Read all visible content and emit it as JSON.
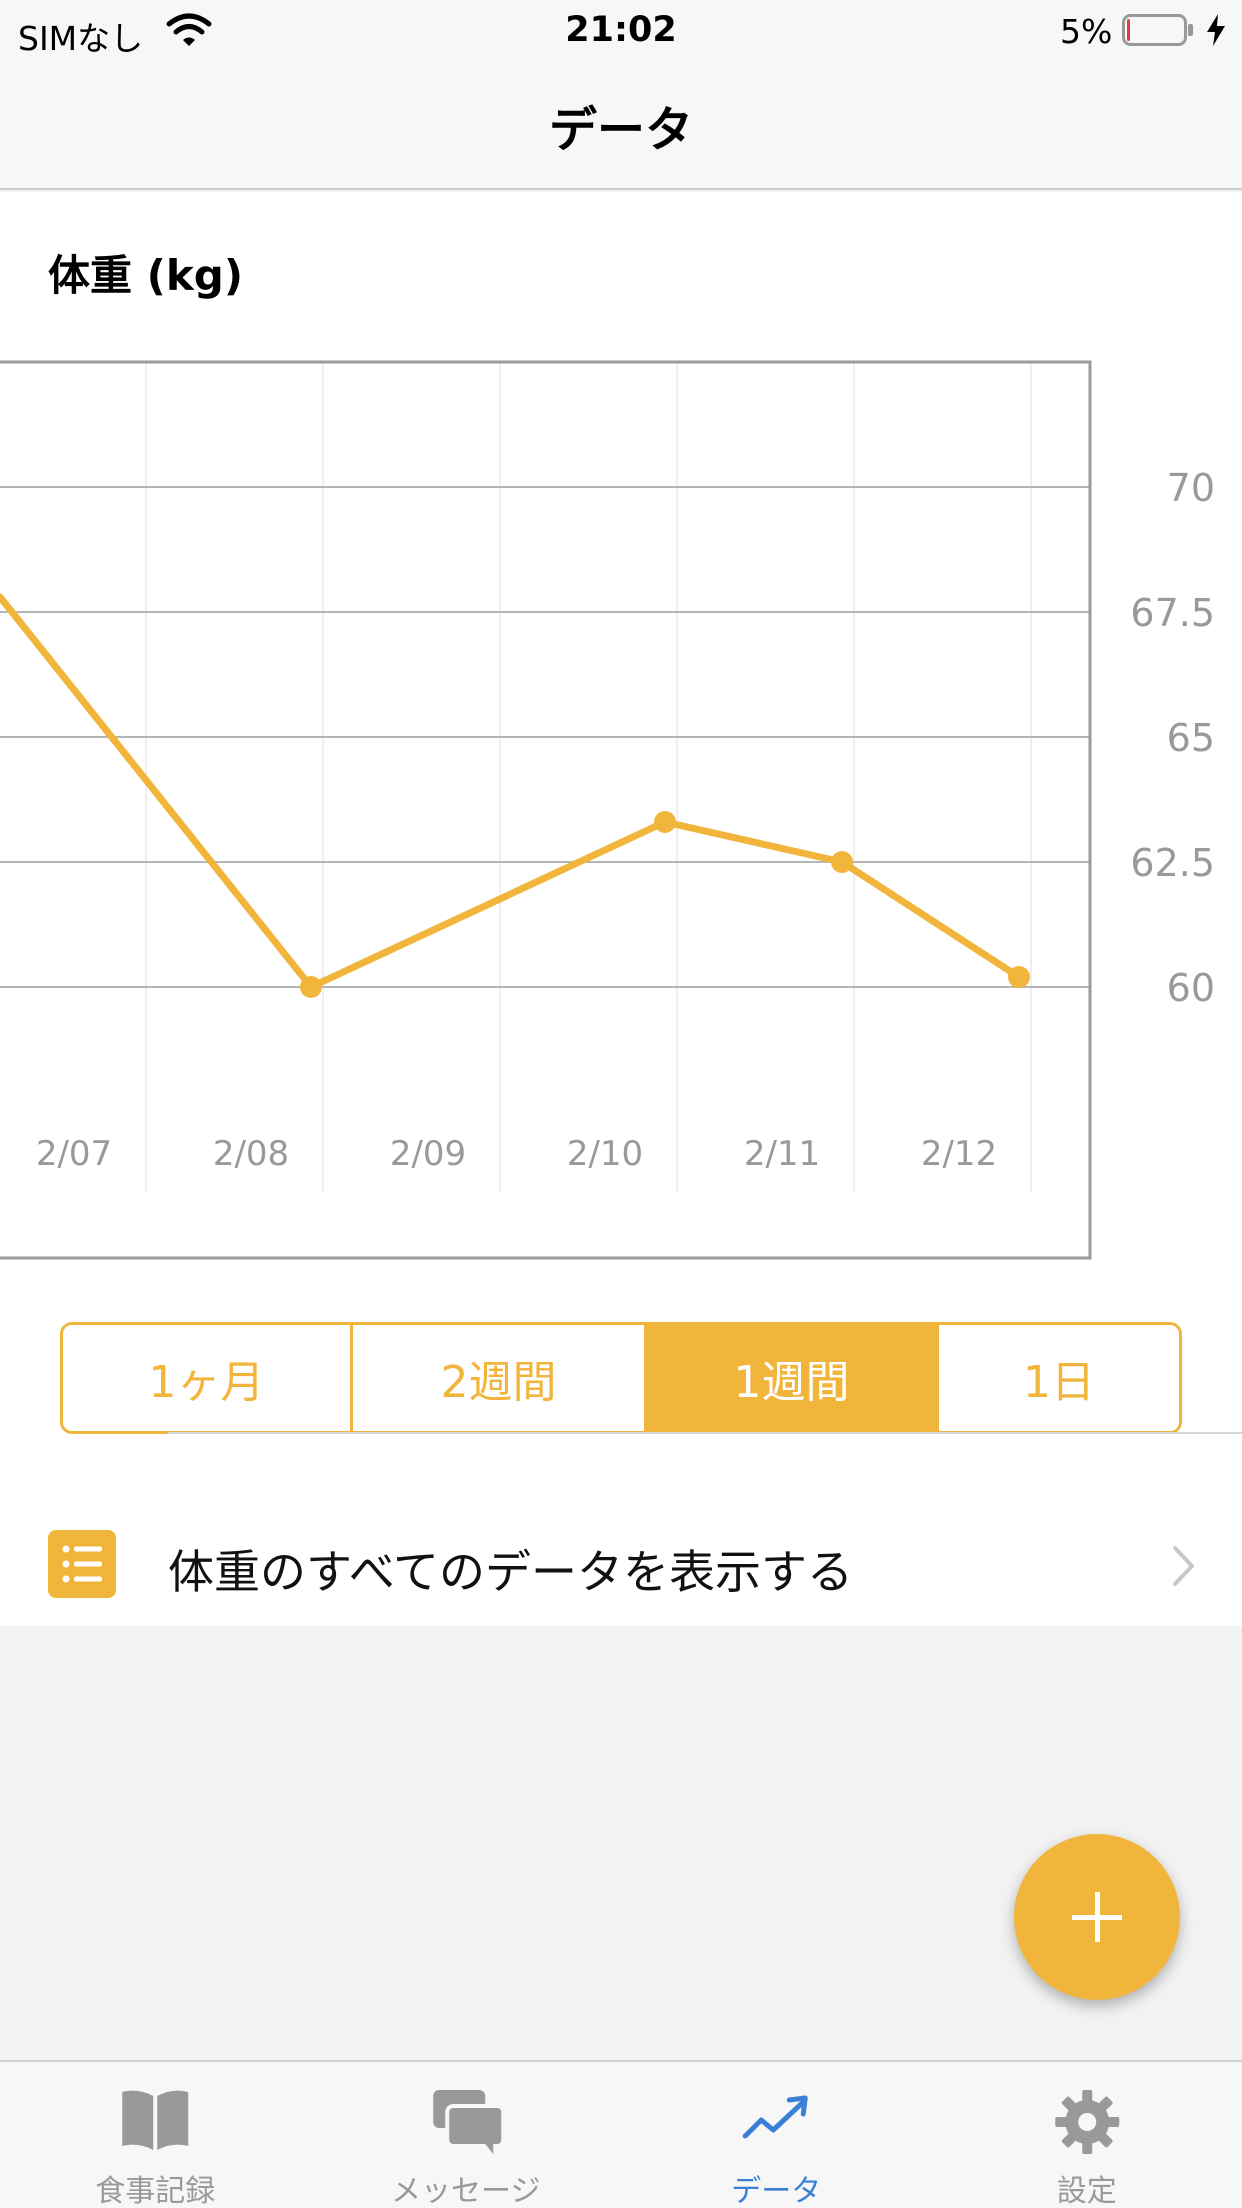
{
  "status_bar": {
    "carrier": "SIMなし",
    "time": "21:02",
    "battery_percent": "5%",
    "battery_level": 0.05,
    "charging": true
  },
  "nav": {
    "title": "データ"
  },
  "chart_title": "体重 (kg)",
  "chart_data": {
    "type": "line",
    "ylim": [
      57.5,
      72.5
    ],
    "yticks": [
      "70",
      "67.5",
      "65",
      "62.5",
      "60"
    ],
    "x_ticks": [
      "2/07",
      "2/08",
      "2/09",
      "2/10",
      "2/11",
      "2/12"
    ],
    "series": [
      {
        "color": "#f2b53c",
        "points": [
          {
            "x": "2/06",
            "y": 67.8
          },
          {
            "x": "2/08",
            "y": 60.0
          },
          {
            "x": "2/10",
            "y": 63.3
          },
          {
            "x": "2/11",
            "y": 62.5
          },
          {
            "x": "2/12",
            "y": 60.2
          }
        ]
      }
    ],
    "grid": true,
    "y_axis_position": "right"
  },
  "range_selector": {
    "options": [
      "1ヶ月",
      "2週間",
      "1週間",
      "1日"
    ],
    "selected": "1週間"
  },
  "list_row": {
    "label": "体重のすべてのデータを表示する",
    "icon": "list-icon"
  },
  "fab": {
    "icon": "plus-icon"
  },
  "tabs": [
    {
      "label": "食事記録",
      "icon": "book-icon",
      "active": false
    },
    {
      "label": "メッセージ",
      "icon": "chat-bubbles-icon",
      "active": false
    },
    {
      "label": "データ",
      "icon": "trend-chart-icon",
      "active": true
    },
    {
      "label": "設定",
      "icon": "gear-icon",
      "active": false
    }
  ],
  "colors": {
    "accent": "#f2b53c",
    "tab_active": "#3b7fd6",
    "tab_inactive": "#999999",
    "battery_low": "#e23b3b"
  }
}
